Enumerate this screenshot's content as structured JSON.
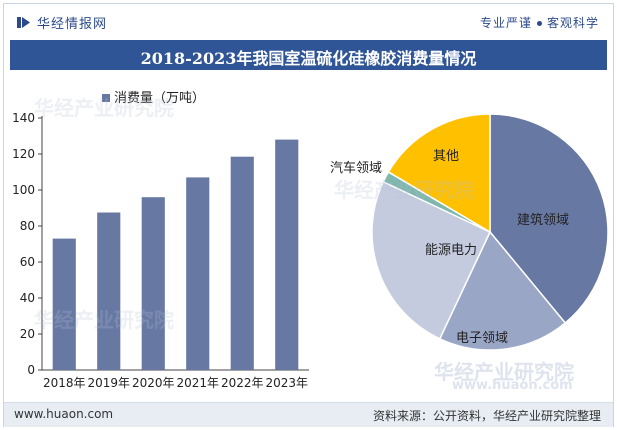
{
  "header": {
    "brand_name": "华经情报网",
    "tagline_left": "专业严谨",
    "tagline_right": "客观科学"
  },
  "title": "2018-2023年我国室温硫化硅橡胶消费量情况",
  "watermark": {
    "brand": "华经产业研究院",
    "url": "www.huaon.com"
  },
  "footer": {
    "site": "www.huaon.com",
    "source": "资料来源：公开资料，华经产业研究院整理"
  },
  "chart_data": [
    {
      "type": "bar",
      "legend": "消费量（万吨）",
      "categories": [
        "2018年",
        "2019年",
        "2020年",
        "2021年",
        "2022年",
        "2023年"
      ],
      "values": [
        73,
        87.5,
        96,
        107,
        118.5,
        128
      ],
      "ylim": [
        0,
        140
      ],
      "yticks": [
        0,
        20,
        40,
        60,
        80,
        100,
        120,
        140
      ],
      "color": "#6778a3"
    },
    {
      "type": "pie",
      "slices": [
        {
          "label": "建筑领域",
          "value": 39,
          "color": "#6778a3"
        },
        {
          "label": "电子领域",
          "value": 18,
          "color": "#9aa6c6"
        },
        {
          "label": "能源电力",
          "value": 25,
          "color": "#c4cbdf"
        },
        {
          "label": "汽车领域",
          "value": 1.5,
          "color": "#7fb6ad"
        },
        {
          "label": "其他",
          "value": 16.5,
          "color": "#ffc000"
        }
      ]
    }
  ]
}
